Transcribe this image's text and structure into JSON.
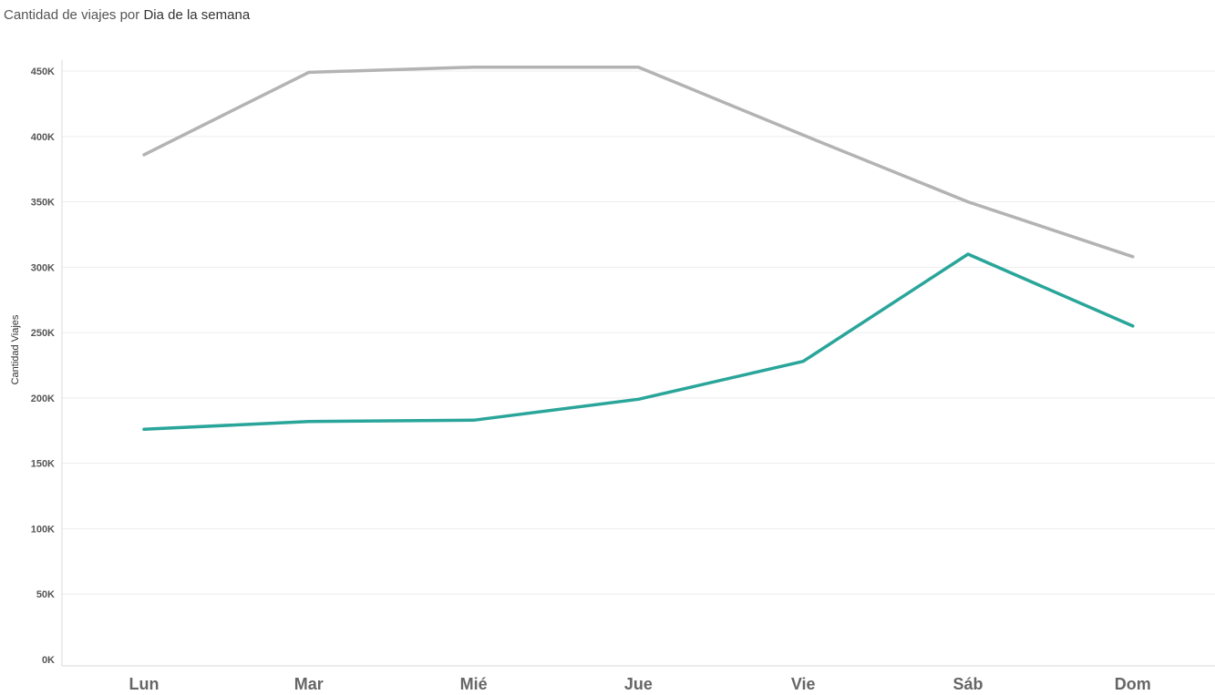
{
  "title": {
    "prefix": "Cantidad de viajes por ",
    "field": "Dia de la semana"
  },
  "chart_data": {
    "type": "line",
    "categories": [
      "Lun",
      "Mar",
      "Mié",
      "Jue",
      "Vie",
      "Sáb",
      "Dom"
    ],
    "series": [
      {
        "values": [
          386000,
          449000,
          453000,
          453000,
          401000,
          350000,
          308000
        ],
        "color": "#b3b3b3"
      },
      {
        "values": [
          176000,
          182000,
          183000,
          199000,
          228000,
          310000,
          255000
        ],
        "color": "#2aa59a"
      }
    ],
    "ylabel": "Cantidad Viajes",
    "xlabel": "",
    "ylim": [
      0,
      450000
    ],
    "yticks": [
      0,
      50000,
      100000,
      150000,
      200000,
      250000,
      300000,
      350000,
      400000,
      450000
    ],
    "ytick_labels": [
      "0K",
      "50K",
      "100K",
      "150K",
      "200K",
      "250K",
      "300K",
      "350K",
      "400K",
      "450K"
    ],
    "grid": true
  }
}
